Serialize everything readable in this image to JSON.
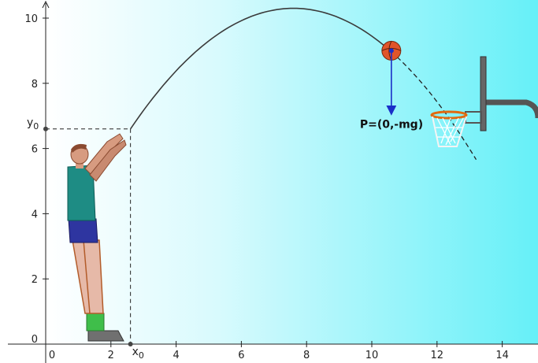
{
  "chart_data": {
    "type": "line",
    "x_ticks": [
      0,
      2,
      4,
      6,
      8,
      10,
      12,
      14
    ],
    "y_ticks": [
      0,
      2,
      4,
      6,
      8,
      10
    ],
    "xlim": [
      -0.2,
      15
    ],
    "ylim": [
      -0.1,
      10.4
    ],
    "x0": 2.6,
    "y0": 6.6,
    "x0_label": "x0",
    "y0_label": "y0",
    "trajectory_peak": {
      "x": 7.6,
      "y": 10.3
    },
    "ball_position": {
      "x": 10.6,
      "y": 9.0
    },
    "dashed_continuation_end": {
      "x": 13.2,
      "y": 6.3
    },
    "force_label": "P=(0,-mg)",
    "grid": false
  },
  "colors": {
    "background_left": "#ffffff",
    "background_right": "#66f0f8",
    "trajectory": "#3a3a3a",
    "force_arrow": "#1a2fc8",
    "ball": "#e0552a",
    "axis": "#222222"
  }
}
